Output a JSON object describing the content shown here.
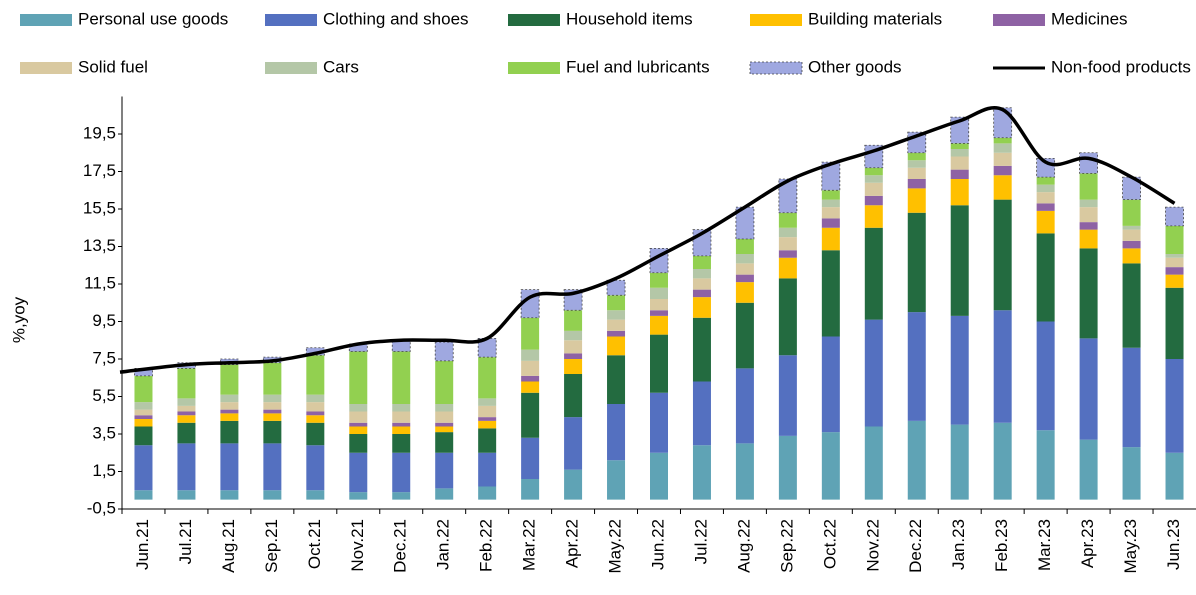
{
  "chart_data": {
    "type": "stacked_bar_line",
    "y_label": "%,yoy",
    "categories": [
      "Jun.21",
      "Jul.21",
      "Aug.21",
      "Sep.21",
      "Oct.21",
      "Nov.21",
      "Dec.21",
      "Jan.22",
      "Feb.22",
      "Mar.22",
      "Apr.22",
      "May.22",
      "Jun.22",
      "Jul.22",
      "Aug.22",
      "Sep.22",
      "Oct.22",
      "Nov.22",
      "Dec.22",
      "Jan.23",
      "Feb.23",
      "Mar.23",
      "Apr.23",
      "May.23",
      "Jun.23"
    ],
    "series": [
      {
        "name": "Personal use goods",
        "color": "#5fa3b5",
        "values": [
          0.5,
          0.5,
          0.5,
          0.5,
          0.5,
          0.4,
          0.4,
          0.6,
          0.7,
          1.1,
          1.6,
          2.1,
          2.5,
          2.9,
          3.0,
          3.4,
          3.6,
          3.9,
          4.2,
          4.0,
          4.1,
          3.7,
          3.2,
          2.8,
          2.5
        ]
      },
      {
        "name": "Clothing and shoes",
        "color": "#5470c0",
        "values": [
          2.4,
          2.5,
          2.5,
          2.5,
          2.4,
          2.1,
          2.1,
          1.9,
          1.8,
          2.2,
          2.8,
          3.0,
          3.2,
          3.4,
          4.0,
          4.3,
          5.1,
          5.7,
          5.8,
          5.8,
          6.0,
          5.8,
          5.4,
          5.3,
          5.0
        ]
      },
      {
        "name": "Household items",
        "color": "#236b40",
        "values": [
          1.0,
          1.1,
          1.2,
          1.2,
          1.2,
          1.0,
          1.0,
          1.1,
          1.3,
          2.4,
          2.3,
          2.6,
          3.1,
          3.4,
          3.5,
          4.1,
          4.6,
          4.9,
          5.3,
          5.9,
          5.9,
          4.7,
          4.8,
          4.5,
          3.8
        ]
      },
      {
        "name": "Building materials",
        "color": "#ffc000",
        "values": [
          0.4,
          0.4,
          0.4,
          0.4,
          0.4,
          0.4,
          0.4,
          0.3,
          0.4,
          0.6,
          0.8,
          1.0,
          1.0,
          1.1,
          1.1,
          1.1,
          1.2,
          1.2,
          1.3,
          1.4,
          1.3,
          1.2,
          1.0,
          0.8,
          0.7
        ]
      },
      {
        "name": "Medicines",
        "color": "#8e62a4",
        "values": [
          0.2,
          0.2,
          0.2,
          0.2,
          0.2,
          0.2,
          0.2,
          0.2,
          0.2,
          0.3,
          0.3,
          0.3,
          0.3,
          0.4,
          0.4,
          0.4,
          0.5,
          0.5,
          0.5,
          0.5,
          0.5,
          0.4,
          0.4,
          0.4,
          0.4
        ]
      },
      {
        "name": "Solid fuel",
        "color": "#d9c9a0",
        "values": [
          0.3,
          0.3,
          0.4,
          0.4,
          0.5,
          0.6,
          0.6,
          0.6,
          0.6,
          0.8,
          0.7,
          0.6,
          0.6,
          0.6,
          0.6,
          0.7,
          0.6,
          0.7,
          0.6,
          0.7,
          0.7,
          0.6,
          0.8,
          0.6,
          0.5
        ]
      },
      {
        "name": "Cars",
        "color": "#b4c7a7",
        "values": [
          0.4,
          0.4,
          0.4,
          0.4,
          0.4,
          0.4,
          0.4,
          0.4,
          0.4,
          0.6,
          0.5,
          0.5,
          0.6,
          0.5,
          0.5,
          0.5,
          0.4,
          0.4,
          0.4,
          0.4,
          0.5,
          0.4,
          0.4,
          0.2,
          0.2
        ]
      },
      {
        "name": "Fuel and lubricants",
        "color": "#92d050",
        "values": [
          1.4,
          1.6,
          1.6,
          1.7,
          2.1,
          2.8,
          2.8,
          2.3,
          2.2,
          1.7,
          1.1,
          0.8,
          0.8,
          0.7,
          0.8,
          0.8,
          0.5,
          0.4,
          0.4,
          0.3,
          0.3,
          0.4,
          1.4,
          1.4,
          1.5
        ]
      },
      {
        "name": "Other goods",
        "color": "#9fa8e0",
        "values": [
          0.4,
          0.3,
          0.3,
          0.3,
          0.4,
          0.4,
          0.6,
          1.0,
          1.0,
          1.5,
          1.1,
          0.8,
          1.3,
          1.4,
          1.7,
          1.8,
          1.5,
          1.2,
          1.1,
          1.4,
          1.6,
          1.0,
          1.1,
          1.2,
          1.0
        ]
      },
      {
        "name": "Non-food products",
        "color": "#000000",
        "kind": "line",
        "values": [
          6.8,
          7.2,
          7.3,
          7.4,
          7.8,
          8.3,
          8.5,
          8.5,
          8.6,
          10.8,
          11.0,
          11.8,
          13.0,
          14.2,
          15.6,
          17.0,
          17.9,
          18.6,
          19.4,
          20.2,
          20.8,
          18.0,
          18.2,
          17.2,
          15.8
        ]
      }
    ],
    "ylim": [
      -0.5,
      21.5
    ],
    "yticks": [
      {
        "value": -0.5,
        "label": "-0,5"
      },
      {
        "value": 1.5,
        "label": "1,5"
      },
      {
        "value": 3.5,
        "label": "3,5"
      },
      {
        "value": 5.5,
        "label": "5,5"
      },
      {
        "value": 7.5,
        "label": "7,5"
      },
      {
        "value": 9.5,
        "label": "9,5"
      },
      {
        "value": 11.5,
        "label": "11,5"
      },
      {
        "value": 13.5,
        "label": "13,5"
      },
      {
        "value": 15.5,
        "label": "15,5"
      },
      {
        "value": 17.5,
        "label": "17,5"
      },
      {
        "value": 19.5,
        "label": "19,5"
      }
    ],
    "grid": false,
    "legend": "top"
  }
}
